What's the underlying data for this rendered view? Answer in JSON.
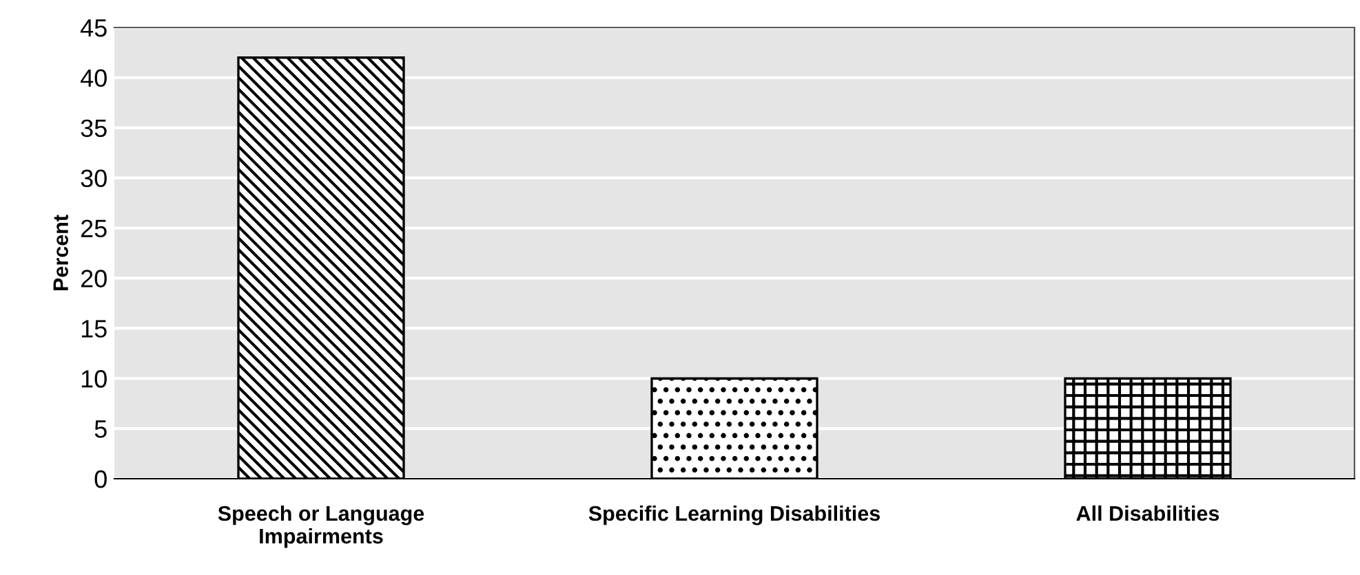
{
  "chart_data": {
    "type": "bar",
    "ylabel": "Percent",
    "categories": [
      "Speech or Language\nImpairments",
      "Specific Learning Disabilities",
      "All Disabilities"
    ],
    "values": [
      42,
      10,
      10
    ],
    "ylim": [
      0,
      45
    ],
    "yticks": [
      0,
      5,
      10,
      15,
      20,
      25,
      30,
      35,
      40,
      45
    ],
    "grid": "y",
    "legend": false
  }
}
